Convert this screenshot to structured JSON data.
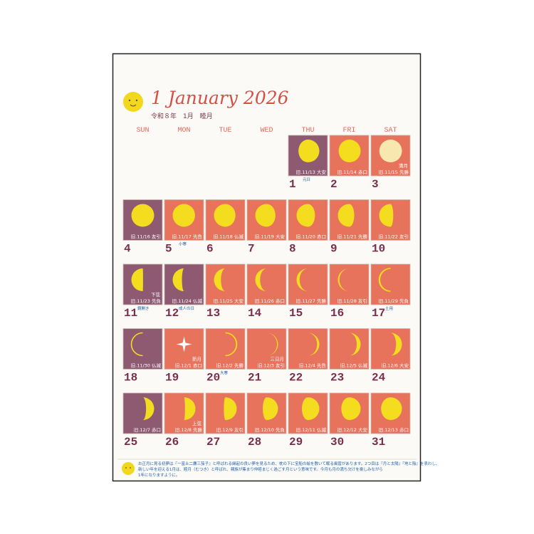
{
  "header": {
    "title": "1 January 2026",
    "subtitle": "令和８年　1月　睦月"
  },
  "weekdays": [
    "SUN",
    "MON",
    "TUE",
    "WED",
    "THU",
    "FRI",
    "SAT"
  ],
  "first_weekday": 4,
  "days": [
    {
      "day": "1",
      "lunar": "旧.11/13 大安",
      "note": "元日",
      "holiday": true
    },
    {
      "day": "2",
      "lunar": "旧.11/14 赤口"
    },
    {
      "day": "3",
      "lunar": "旧.11/15 先勝",
      "phase_label": "満月"
    },
    {
      "day": "4",
      "lunar": "旧.11/16 友引"
    },
    {
      "day": "5",
      "lunar": "旧.11/17 先負",
      "note": "小寒"
    },
    {
      "day": "6",
      "lunar": "旧.11/18 仏滅"
    },
    {
      "day": "7",
      "lunar": "旧.11/19 大安"
    },
    {
      "day": "8",
      "lunar": "旧.11/20 赤口"
    },
    {
      "day": "9",
      "lunar": "旧.11/21 先勝"
    },
    {
      "day": "10",
      "lunar": "旧.11/22 友引"
    },
    {
      "day": "11",
      "lunar": "旧.11/23 先負",
      "phase_label": "下弦",
      "note": "鏡開き"
    },
    {
      "day": "12",
      "lunar": "旧.11/24 仏滅",
      "note": "成人の日",
      "holiday": true
    },
    {
      "day": "13",
      "lunar": "旧.11/25 大安"
    },
    {
      "day": "14",
      "lunar": "旧.11/26 赤口"
    },
    {
      "day": "15",
      "lunar": "旧.11/27 先勝"
    },
    {
      "day": "16",
      "lunar": "旧.11/28 友引"
    },
    {
      "day": "17",
      "lunar": "旧.11/29 先負",
      "note": "土用"
    },
    {
      "day": "18",
      "lunar": "旧.11/30 仏滅"
    },
    {
      "day": "19",
      "lunar": "旧.12/1 赤口",
      "phase_label": "新月"
    },
    {
      "day": "20",
      "lunar": "旧.12/2 先勝",
      "note": "大寒"
    },
    {
      "day": "21",
      "lunar": "旧.12/3 友引",
      "phase_label": "三日月"
    },
    {
      "day": "22",
      "lunar": "旧.12/4 先負"
    },
    {
      "day": "23",
      "lunar": "旧.12/5 仏滅"
    },
    {
      "day": "24",
      "lunar": "旧.12/6 大安"
    },
    {
      "day": "25",
      "lunar": "旧.12/7 赤口"
    },
    {
      "day": "26",
      "lunar": "旧.12/8 先勝",
      "phase_label": "上弦"
    },
    {
      "day": "27",
      "lunar": "旧.12/9 友引"
    },
    {
      "day": "28",
      "lunar": "旧.12/10 先負"
    },
    {
      "day": "29",
      "lunar": "旧.12/11 仏滅"
    },
    {
      "day": "30",
      "lunar": "旧.12/12 大安"
    },
    {
      "day": "31",
      "lunar": "旧.12/13 赤口"
    }
  ],
  "footer": [
    "お正月に見る初夢は『一富士二鷹三茄子』と呼ばれる縁起の良い夢を見るため、枕の下に宝船の絵を敷いて眠る風習があります。2つ目は『月と太陽』『地と陰』を表わし、",
    "新しい年を迎える1月は、睦月（むつき）と呼ばれ、親族が集まり仲睦まじく過ごす月という意味です。今月も月の満ち欠けを楽しみながら",
    "1年になりますように。"
  ]
}
